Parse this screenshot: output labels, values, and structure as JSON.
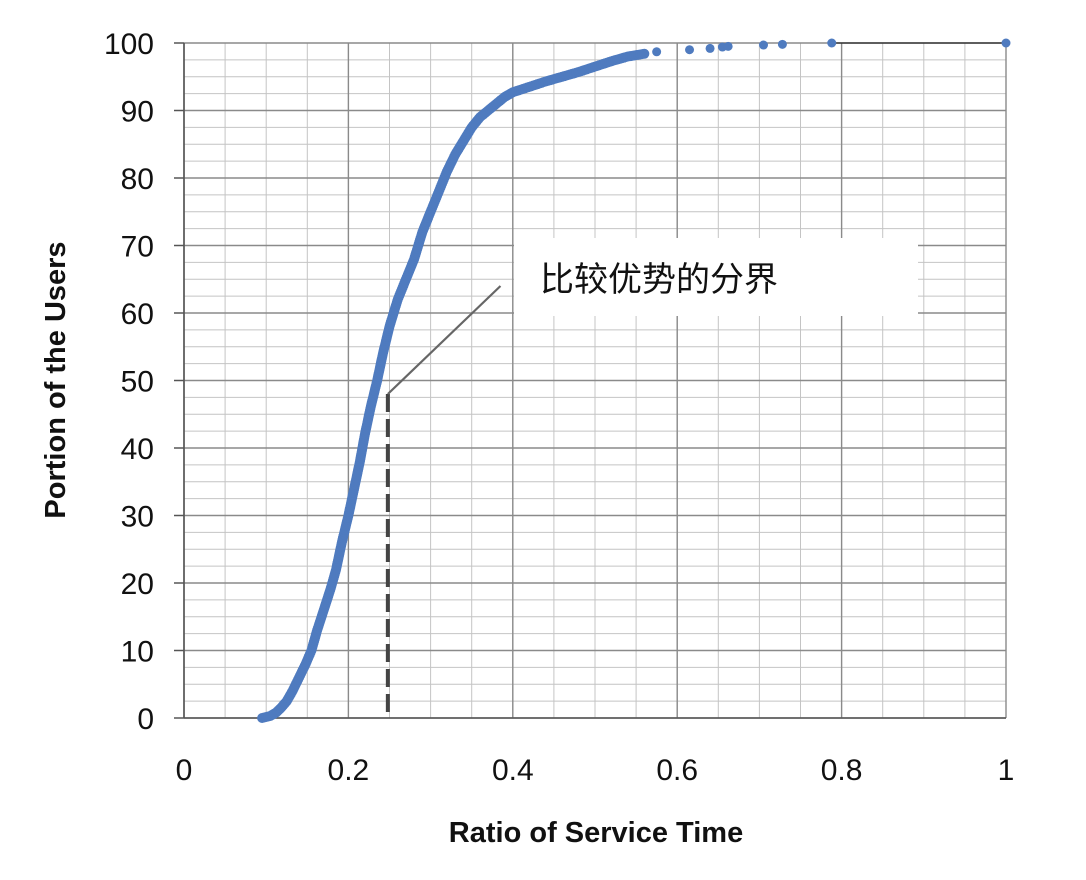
{
  "chart_data": {
    "type": "scatter",
    "title": "",
    "xlabel": "Ratio of Service Time",
    "ylabel": "Portion of the Users",
    "xlim": [
      0,
      1
    ],
    "ylim": [
      0,
      100
    ],
    "x_ticks": [
      "0",
      "0.2",
      "0.4",
      "0.6",
      "0.8",
      "1"
    ],
    "y_ticks": [
      "0",
      "10",
      "20",
      "30",
      "40",
      "50",
      "60",
      "70",
      "80",
      "90",
      "100"
    ],
    "grid": true,
    "legend": "none",
    "series": [
      {
        "color": "#4f7bbf",
        "points": [
          [
            0.095,
            0
          ],
          [
            0.105,
            0.3
          ],
          [
            0.112,
            0.8
          ],
          [
            0.118,
            1.5
          ],
          [
            0.125,
            2.5
          ],
          [
            0.132,
            4
          ],
          [
            0.14,
            6
          ],
          [
            0.148,
            8
          ],
          [
            0.155,
            10
          ],
          [
            0.162,
            13
          ],
          [
            0.17,
            16
          ],
          [
            0.178,
            19
          ],
          [
            0.185,
            22
          ],
          [
            0.192,
            26
          ],
          [
            0.2,
            30
          ],
          [
            0.207,
            34
          ],
          [
            0.214,
            38
          ],
          [
            0.22,
            42
          ],
          [
            0.227,
            46
          ],
          [
            0.235,
            50
          ],
          [
            0.242,
            54
          ],
          [
            0.25,
            58
          ],
          [
            0.26,
            62
          ],
          [
            0.27,
            65
          ],
          [
            0.28,
            68
          ],
          [
            0.29,
            72
          ],
          [
            0.3,
            75
          ],
          [
            0.31,
            78
          ],
          [
            0.32,
            81
          ],
          [
            0.33,
            83.5
          ],
          [
            0.34,
            85.5
          ],
          [
            0.35,
            87.5
          ],
          [
            0.36,
            89
          ],
          [
            0.37,
            90
          ],
          [
            0.38,
            91
          ],
          [
            0.39,
            92
          ],
          [
            0.4,
            92.7
          ],
          [
            0.42,
            93.5
          ],
          [
            0.44,
            94.3
          ],
          [
            0.46,
            95
          ],
          [
            0.48,
            95.7
          ],
          [
            0.5,
            96.5
          ],
          [
            0.52,
            97.3
          ],
          [
            0.54,
            98
          ],
          [
            0.56,
            98.4
          ],
          [
            0.575,
            98.7
          ],
          [
            0.615,
            99
          ],
          [
            0.64,
            99.2
          ],
          [
            0.655,
            99.4
          ],
          [
            0.662,
            99.5
          ],
          [
            0.705,
            99.7
          ],
          [
            0.728,
            99.8
          ],
          [
            0.788,
            100
          ],
          [
            1.0,
            100
          ]
        ]
      }
    ],
    "marker_line": {
      "x": 0.248,
      "y_top": 48,
      "style": "dashed"
    },
    "annotation": {
      "text": "比较优势的分界",
      "arrow_from": [
        0.248,
        48
      ],
      "arrow_to": [
        0.385,
        64
      ]
    }
  }
}
